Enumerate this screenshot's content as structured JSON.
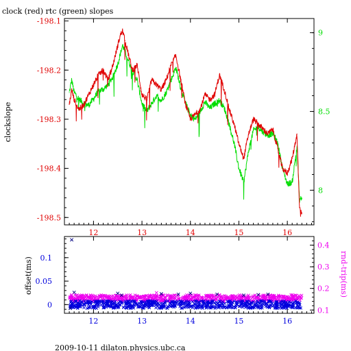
{
  "page": {
    "title": "clock (red) rtc (green) slopes",
    "footer": "2009-10-11  dilaton.physics.ubc.ca"
  },
  "colors": {
    "clock": "#e00000",
    "rtc": "#00dd00",
    "offset": "#0000dd",
    "rndtrip": "#ee00ee",
    "axis": "#000000"
  },
  "chart_data": [
    {
      "type": "line",
      "title": "clock (red) rtc (green) slopes",
      "ylabel": "clockslope",
      "y2label": "",
      "xlabel": "",
      "xlim": [
        11.4,
        16.55
      ],
      "ylim": [
        -198.515,
        -198.095
      ],
      "y2lim": [
        7.78,
        9.09
      ],
      "x_ticks": [
        12,
        13,
        14,
        15,
        16
      ],
      "y_ticks": [
        -198.1,
        -198.2,
        -198.3,
        -198.4,
        -198.5
      ],
      "y2_ticks": [
        8,
        8.5,
        9
      ],
      "x_tick_labels": [
        "12",
        "13",
        "14",
        "15",
        "16"
      ],
      "y_tick_labels": [
        "-198.1",
        "-198.2",
        "-198.3",
        "-198.4",
        "-198.5"
      ],
      "y2_tick_labels": [
        "8",
        "8.5",
        "9"
      ],
      "series": [
        {
          "name": "clock",
          "axis": "left",
          "x": [
            11.5,
            11.55,
            11.6,
            11.7,
            11.8,
            11.9,
            12.0,
            12.1,
            12.2,
            12.3,
            12.4,
            12.5,
            12.55,
            12.6,
            12.65,
            12.7,
            12.8,
            12.9,
            13.0,
            13.1,
            13.2,
            13.3,
            13.4,
            13.5,
            13.6,
            13.7,
            13.8,
            13.9,
            14.0,
            14.1,
            14.2,
            14.3,
            14.4,
            14.5,
            14.6,
            14.7,
            14.8,
            14.9,
            15.0,
            15.1,
            15.2,
            15.3,
            15.4,
            15.5,
            15.6,
            15.7,
            15.8,
            15.9,
            16.0,
            16.1,
            16.2,
            16.25,
            16.3
          ],
          "y": [
            -198.27,
            -198.24,
            -198.26,
            -198.28,
            -198.27,
            -198.25,
            -198.23,
            -198.21,
            -198.2,
            -198.22,
            -198.19,
            -198.15,
            -198.13,
            -198.12,
            -198.14,
            -198.16,
            -198.2,
            -198.19,
            -198.25,
            -198.26,
            -198.22,
            -198.23,
            -198.24,
            -198.22,
            -198.19,
            -198.17,
            -198.22,
            -198.27,
            -198.3,
            -198.29,
            -198.28,
            -198.25,
            -198.26,
            -198.25,
            -198.21,
            -198.24,
            -198.28,
            -198.31,
            -198.35,
            -198.38,
            -198.33,
            -198.3,
            -198.31,
            -198.32,
            -198.33,
            -198.32,
            -198.36,
            -198.4,
            -198.41,
            -198.38,
            -198.33,
            -198.48,
            -198.49
          ]
        },
        {
          "name": "rtc",
          "axis": "right",
          "x": [
            11.5,
            11.55,
            11.6,
            11.7,
            11.8,
            11.9,
            12.0,
            12.1,
            12.2,
            12.3,
            12.4,
            12.5,
            12.55,
            12.6,
            12.65,
            12.7,
            12.8,
            12.9,
            13.0,
            13.1,
            13.2,
            13.3,
            13.4,
            13.5,
            13.6,
            13.7,
            13.8,
            13.9,
            14.0,
            14.1,
            14.2,
            14.3,
            14.4,
            14.5,
            14.6,
            14.7,
            14.8,
            14.9,
            15.0,
            15.1,
            15.2,
            15.3,
            15.4,
            15.5,
            15.6,
            15.7,
            15.8,
            15.9,
            16.0,
            16.1,
            16.2,
            16.25,
            16.3
          ],
          "y": [
            8.62,
            8.7,
            8.62,
            8.58,
            8.55,
            8.54,
            8.58,
            8.63,
            8.64,
            8.67,
            8.72,
            8.8,
            8.86,
            8.92,
            8.88,
            8.84,
            8.76,
            8.7,
            8.55,
            8.5,
            8.55,
            8.6,
            8.57,
            8.62,
            8.7,
            8.78,
            8.65,
            8.55,
            8.48,
            8.45,
            8.5,
            8.56,
            8.52,
            8.55,
            8.57,
            8.52,
            8.42,
            8.3,
            8.14,
            8.05,
            8.25,
            8.38,
            8.4,
            8.37,
            8.35,
            8.36,
            8.3,
            8.14,
            8.04,
            8.05,
            8.28,
            7.94,
            7.95
          ]
        }
      ]
    },
    {
      "type": "scatter",
      "ylabel": "offset(ms)",
      "y2label": "rnd-trip(ms)",
      "xlim": [
        11.4,
        16.55
      ],
      "ylim": [
        -0.0185,
        0.145
      ],
      "y2lim": [
        0.085,
        0.44
      ],
      "x_ticks": [
        12,
        13,
        14,
        15,
        16
      ],
      "y_ticks": [
        0,
        0.05,
        0.1
      ],
      "y2_ticks": [
        0.1,
        0.2,
        0.3,
        0.4
      ],
      "x_tick_labels": [
        "12",
        "13",
        "14",
        "15",
        "16"
      ],
      "y_tick_labels": [
        "0",
        "0.05",
        "0.1"
      ],
      "y2_tick_labels": [
        "0.1",
        "0.2",
        "0.3",
        "0.4"
      ],
      "series": [
        {
          "name": "offset",
          "axis": "left",
          "x": [
            11.55,
            11.6,
            12.5,
            12.58,
            13.4,
            13.75,
            14.0,
            14.55,
            15.1,
            15.4,
            15.6,
            11.52
          ],
          "y": [
            0.138,
            0.026,
            0.024,
            0.02,
            0.023,
            0.022,
            0.024,
            0.022,
            0.02,
            0.021,
            0.022,
            -0.008
          ]
        },
        {
          "name": "rnd-trip",
          "axis": "right",
          "x": [
            11.55,
            12.3,
            12.8,
            13.3,
            13.9,
            14.6,
            15.2,
            15.7,
            16.1
          ],
          "y": [
            0.17,
            0.165,
            0.16,
            0.18,
            0.165,
            0.17,
            0.168,
            0.165,
            0.17
          ]
        }
      ]
    }
  ]
}
